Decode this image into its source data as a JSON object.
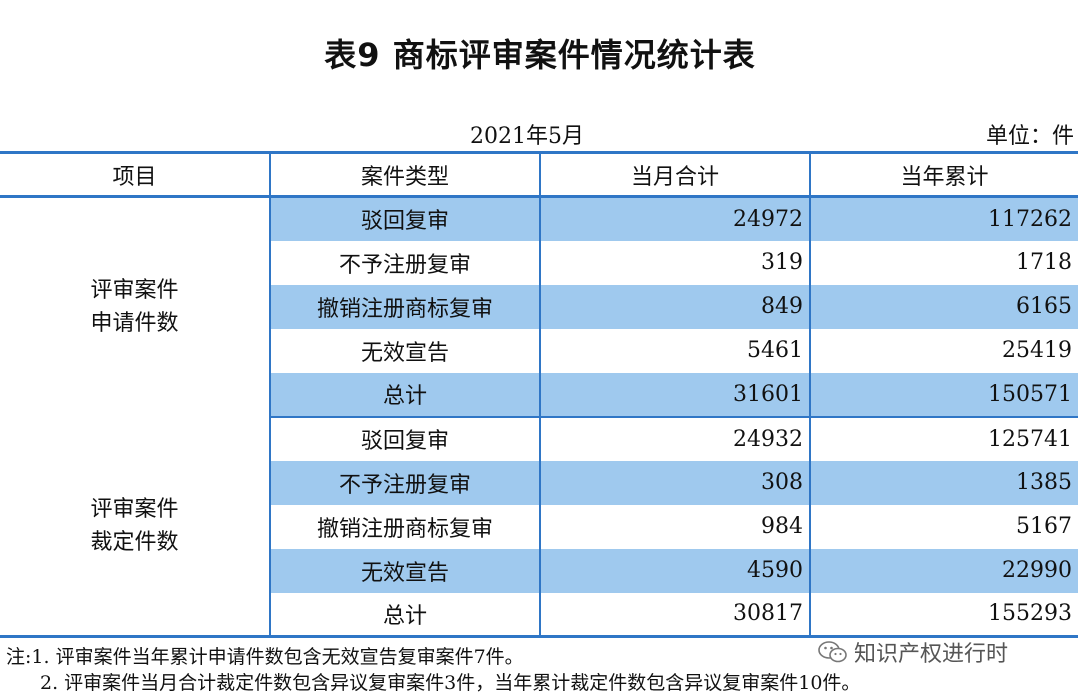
{
  "title": "表9  商标评审案件情况统计表",
  "date": "2021年5月",
  "unit": "单位：件",
  "headers": [
    "项目",
    "案件类型",
    "当月合计",
    "当年累计"
  ],
  "groups": [
    {
      "label_line1": "评审案件",
      "label_line2": "申请件数",
      "rows": [
        {
          "type": "驳回复审",
          "month": "24972",
          "year": "117262"
        },
        {
          "type": "不予注册复审",
          "month": "319",
          "year": "1718"
        },
        {
          "type": "撤销注册商标复审",
          "month": "849",
          "year": "6165"
        },
        {
          "type": "无效宣告",
          "month": "5461",
          "year": "25419"
        },
        {
          "type": "总计",
          "month": "31601",
          "year": "150571"
        }
      ]
    },
    {
      "label_line1": "评审案件",
      "label_line2": "裁定件数",
      "rows": [
        {
          "type": "驳回复审",
          "month": "24932",
          "year": "125741"
        },
        {
          "type": "不予注册复审",
          "month": "308",
          "year": "1385"
        },
        {
          "type": "撤销注册商标复审",
          "month": "984",
          "year": "5167"
        },
        {
          "type": "无效宣告",
          "month": "4590",
          "year": "22990"
        },
        {
          "type": "总计",
          "month": "30817",
          "year": "155293"
        }
      ]
    }
  ],
  "notes": [
    "注:1. 评审案件当年累计申请件数包含无效宣告复审案件7件。",
    "2. 评审案件当月合计裁定件数包含异议复审案件3件，当年累计裁定件数包含异议复审案件10件。"
  ],
  "watermark": {
    "text": "知识产权进行时",
    "icon": "wechat-icon"
  },
  "colors": {
    "rule": "#2f76c6",
    "shade": "#9fc9ee"
  }
}
